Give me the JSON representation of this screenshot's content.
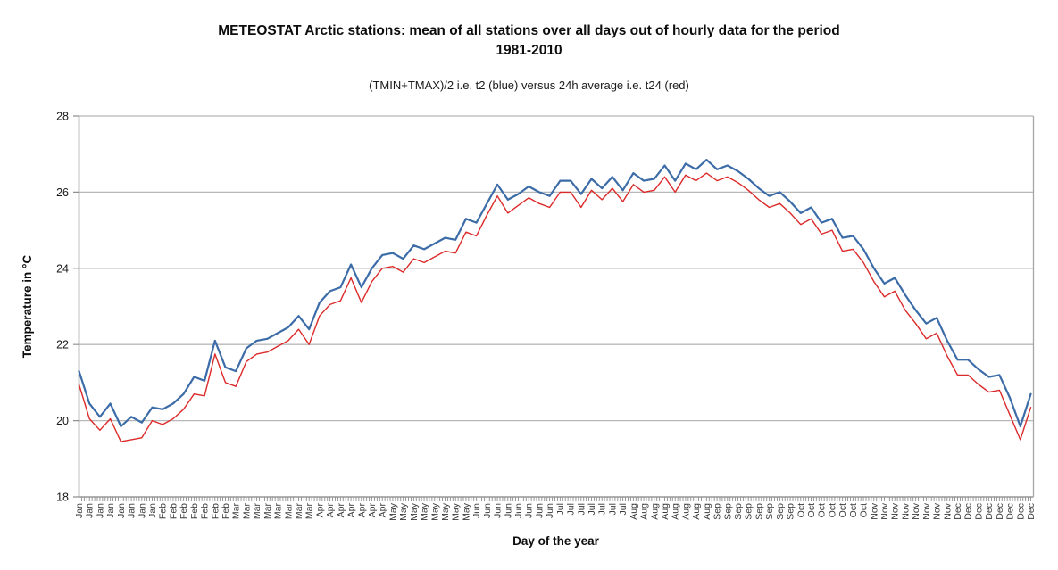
{
  "title": {
    "line1": "METEOSTAT Arctic stations: mean of all stations over all days out of hourly data for the period",
    "line2": "1981-2010"
  },
  "subtitle": "(TMIN+TMAX)/2 i.e. t2 (blue) versus 24h average i.e. t24 (red)",
  "y_axis": {
    "title": "Temperature in °C",
    "ticks": [
      18,
      20,
      22,
      24,
      26,
      28
    ]
  },
  "x_axis": {
    "title": "Day of the year",
    "label_step_days": 4
  },
  "colors": {
    "t2_blue": "#3c6ca8",
    "t24_red": "#dc2a2a",
    "gridline": "#b8b8b8",
    "axis_line": "#a6a6a6",
    "tick": "#8f8f8f",
    "x_label_text": "#3a3a3a",
    "y_label_text": "#1a1a1a"
  },
  "chart_data": {
    "type": "line",
    "title": "METEOSTAT Arctic stations: mean of all stations over all days out of hourly data for the period 1981-2010",
    "subtitle": "(TMIN+TMAX)/2 i.e. t2 (blue) versus 24h average i.e. t24 (red)",
    "xlabel": "Day of the year",
    "ylabel": "Temperature in °C",
    "ylim": [
      18,
      28
    ],
    "xlim_days": [
      1,
      365
    ],
    "grid": true,
    "legend_position": "none",
    "x_days": [
      1,
      5,
      9,
      13,
      17,
      21,
      25,
      29,
      33,
      37,
      41,
      45,
      49,
      53,
      57,
      61,
      65,
      69,
      73,
      77,
      81,
      85,
      89,
      93,
      97,
      101,
      105,
      109,
      113,
      117,
      121,
      125,
      129,
      133,
      137,
      141,
      145,
      149,
      153,
      157,
      161,
      165,
      169,
      173,
      177,
      181,
      185,
      189,
      193,
      197,
      201,
      205,
      209,
      213,
      217,
      221,
      225,
      229,
      233,
      237,
      241,
      245,
      249,
      253,
      257,
      261,
      265,
      269,
      273,
      277,
      281,
      285,
      289,
      293,
      297,
      301,
      305,
      309,
      313,
      317,
      321,
      325,
      329,
      333,
      337,
      341,
      345,
      349,
      353,
      357,
      361,
      365
    ],
    "x_tick_labels": [
      "Jan",
      "Jan",
      "Jan",
      "Jan",
      "Jan",
      "Jan",
      "Jan",
      "Jan",
      "Feb",
      "Feb",
      "Feb",
      "Feb",
      "Feb",
      "Feb",
      "Feb",
      "Mar",
      "Mar",
      "Mar",
      "Mar",
      "Mar",
      "Mar",
      "Mar",
      "Mar",
      "Apr",
      "Apr",
      "Apr",
      "Apr",
      "Apr",
      "Apr",
      "Apr",
      "May",
      "May",
      "May",
      "May",
      "May",
      "May",
      "May",
      "May",
      "Jun",
      "Jun",
      "Jun",
      "Jun",
      "Jun",
      "Jun",
      "Jun",
      "Jun",
      "Jul",
      "Jul",
      "Jul",
      "Jul",
      "Jul",
      "Jul",
      "Jul",
      "Aug",
      "Aug",
      "Aug",
      "Aug",
      "Aug",
      "Aug",
      "Aug",
      "Aug",
      "Sep",
      "Sep",
      "Sep",
      "Sep",
      "Sep",
      "Sep",
      "Sep",
      "Sep",
      "Oct",
      "Oct",
      "Oct",
      "Oct",
      "Oct",
      "Oct",
      "Oct",
      "Nov",
      "Nov",
      "Nov",
      "Nov",
      "Nov",
      "Nov",
      "Nov",
      "Nov",
      "Dec",
      "Dec",
      "Dec",
      "Dec",
      "Dec",
      "Dec",
      "Dec",
      "Dec"
    ],
    "series": [
      {
        "name": "t2 (blue) = (TMIN+TMAX)/2",
        "color": "#3c6ca8",
        "line_width": 2.2,
        "values": [
          21.3,
          20.45,
          20.1,
          20.45,
          19.85,
          20.1,
          19.95,
          20.35,
          20.3,
          20.45,
          20.7,
          21.15,
          21.05,
          22.1,
          21.4,
          21.3,
          21.9,
          22.1,
          22.15,
          22.3,
          22.45,
          22.75,
          22.4,
          23.1,
          23.4,
          23.5,
          24.1,
          23.5,
          24.0,
          24.35,
          24.4,
          24.25,
          24.6,
          24.5,
          24.65,
          24.8,
          24.75,
          25.3,
          25.2,
          25.7,
          26.2,
          25.8,
          25.95,
          26.15,
          26.0,
          25.9,
          26.3,
          26.3,
          25.95,
          26.35,
          26.1,
          26.4,
          26.05,
          26.5,
          26.3,
          26.35,
          26.7,
          26.3,
          26.75,
          26.6,
          26.85,
          26.6,
          26.7,
          26.55,
          26.35,
          26.1,
          25.9,
          26.0,
          25.75,
          25.45,
          25.6,
          25.2,
          25.3,
          24.8,
          24.85,
          24.5,
          24.0,
          23.6,
          23.75,
          23.3,
          22.9,
          22.55,
          22.7,
          22.1,
          21.6,
          21.6,
          21.35,
          21.15,
          21.2,
          20.6,
          19.85,
          20.7
        ]
      },
      {
        "name": "t24 (red) = 24h average",
        "color": "#dc2a2a",
        "line_width": 1.4,
        "values": [
          20.95,
          20.05,
          19.75,
          20.05,
          19.45,
          19.5,
          19.55,
          20.0,
          19.9,
          20.05,
          20.3,
          20.7,
          20.65,
          21.75,
          21.0,
          20.9,
          21.55,
          21.75,
          21.8,
          21.95,
          22.1,
          22.4,
          22.0,
          22.75,
          23.05,
          23.15,
          23.75,
          23.1,
          23.65,
          24.0,
          24.05,
          23.9,
          24.25,
          24.15,
          24.3,
          24.45,
          24.4,
          24.95,
          24.85,
          25.4,
          25.9,
          25.45,
          25.65,
          25.85,
          25.7,
          25.6,
          26.0,
          26.0,
          25.6,
          26.05,
          25.8,
          26.1,
          25.75,
          26.2,
          26.0,
          26.05,
          26.4,
          26.0,
          26.45,
          26.3,
          26.5,
          26.3,
          26.4,
          26.25,
          26.05,
          25.8,
          25.6,
          25.7,
          25.45,
          25.15,
          25.3,
          24.9,
          25.0,
          24.45,
          24.5,
          24.15,
          23.65,
          23.25,
          23.4,
          22.9,
          22.55,
          22.15,
          22.3,
          21.7,
          21.2,
          21.2,
          20.95,
          20.75,
          20.8,
          20.15,
          19.5,
          20.35
        ]
      }
    ]
  }
}
